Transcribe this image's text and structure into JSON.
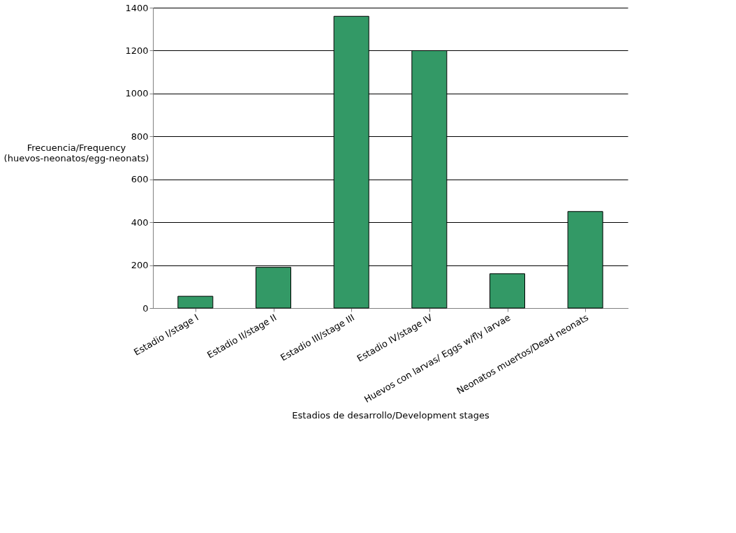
{
  "chart_data": {
    "type": "bar",
    "xlabel": "Estadios de desarrollo/Development stages",
    "ylabel": "Frecuencia/Frequency (huevos-neonatos/egg-neonats)",
    "categories": [
      "Estadio I/stage I",
      "Estadio II/stage II",
      "Estadio III/stage III",
      "Estadio IV/stage IV",
      "Huevos con larvas/ Eggs w/fly larvae",
      "Neonatos muertos/Dead neonats"
    ],
    "values": [
      55,
      190,
      1360,
      1200,
      160,
      450
    ],
    "color": "#339966",
    "ylim": [
      0,
      1400
    ],
    "yticks": [
      0,
      200,
      400,
      600,
      800,
      1000,
      1200,
      1400
    ],
    "grid": "y"
  }
}
